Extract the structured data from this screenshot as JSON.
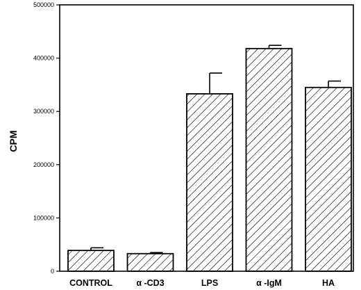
{
  "chart_data": {
    "type": "bar",
    "title": "",
    "xlabel": "",
    "ylabel": "CPM",
    "ylim": [
      0,
      500000
    ],
    "yticks": [
      0,
      100000,
      200000,
      300000,
      400000,
      500000
    ],
    "ytick_labels": [
      "0",
      "100000",
      "200000",
      "300000",
      "400000",
      "500000"
    ],
    "categories": [
      "CONTROL",
      "α -CD3",
      "LPS",
      "α -IgM",
      "HA"
    ],
    "values": [
      39000,
      33000,
      333000,
      418000,
      345000
    ],
    "error_bars": [
      5000,
      2000,
      39000,
      6000,
      12000
    ],
    "bar_pattern": "diagonal-hatch",
    "grid": false,
    "legend": "none"
  }
}
